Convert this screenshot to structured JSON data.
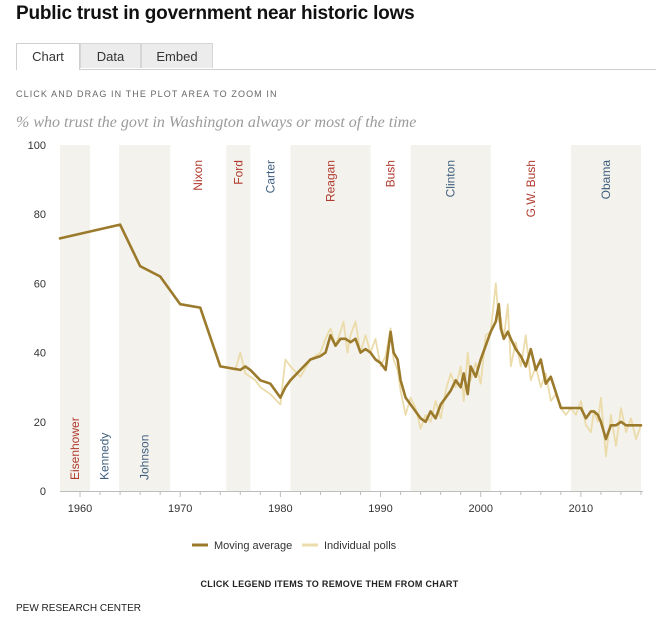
{
  "page": {
    "title": "Public trust in government near historic lows",
    "tabs": [
      {
        "label": "Chart",
        "active": true
      },
      {
        "label": "Data",
        "active": false
      },
      {
        "label": "Embed",
        "active": false
      }
    ],
    "zoom_hint": "CLICK AND DRAG IN THE PLOT AREA TO ZOOM IN",
    "legend_hint": "CLICK LEGEND ITEMS TO REMOVE THEM FROM CHART",
    "source": "PEW RESEARCH CENTER"
  },
  "chart_data": {
    "type": "line",
    "title": "% who trust the govt in Washington always or most of the time",
    "xlim": [
      1958,
      2016
    ],
    "ylim": [
      0,
      100
    ],
    "x_ticks": [
      1960,
      1970,
      1980,
      1990,
      2000,
      2010
    ],
    "y_ticks": [
      0,
      20,
      40,
      60,
      80,
      100
    ],
    "colors": {
      "moving_average": "#9b7a2c",
      "individual_polls": "#ecdcab",
      "shade": "#f3f2ec",
      "republican": "#b03a2e",
      "democrat": "#3f5f7f"
    },
    "presidents": [
      {
        "name": "Eisenhower",
        "start": 1958,
        "end": 1961,
        "party": "R",
        "shaded": true,
        "label_pos": "bottom"
      },
      {
        "name": "Kennedy",
        "start": 1961,
        "end": 1963.9,
        "party": "D",
        "shaded": false,
        "label_pos": "bottom"
      },
      {
        "name": "Johnson",
        "start": 1963.9,
        "end": 1969,
        "party": "D",
        "shaded": true,
        "label_pos": "bottom"
      },
      {
        "name": "Nixon",
        "start": 1969,
        "end": 1974.6,
        "party": "R",
        "shaded": false,
        "label_pos": "top"
      },
      {
        "name": "Ford",
        "start": 1974.6,
        "end": 1977,
        "party": "R",
        "shaded": true,
        "label_pos": "top"
      },
      {
        "name": "Carter",
        "start": 1977,
        "end": 1981,
        "party": "D",
        "shaded": false,
        "label_pos": "top"
      },
      {
        "name": "Reagan",
        "start": 1981,
        "end": 1989,
        "party": "R",
        "shaded": true,
        "label_pos": "top"
      },
      {
        "name": "Bush",
        "start": 1989,
        "end": 1993,
        "party": "R",
        "shaded": false,
        "label_pos": "top"
      },
      {
        "name": "Clinton",
        "start": 1993,
        "end": 2001,
        "party": "D",
        "shaded": true,
        "label_pos": "top"
      },
      {
        "name": "G.W. Bush",
        "start": 2001,
        "end": 2009,
        "party": "R",
        "shaded": false,
        "label_pos": "top"
      },
      {
        "name": "Obama",
        "start": 2009,
        "end": 2016,
        "party": "D",
        "shaded": true,
        "label_pos": "top"
      }
    ],
    "series": [
      {
        "name": "Individual polls",
        "x": [
          1958,
          1964,
          1966,
          1968,
          1970,
          1972,
          1974,
          1975.5,
          1976,
          1976.5,
          1977,
          1977.5,
          1978,
          1979,
          1980,
          1980.5,
          1981,
          1982,
          1983,
          1984,
          1984.5,
          1985,
          1985.5,
          1986,
          1986.3,
          1986.7,
          1987,
          1987.5,
          1988,
          1988.5,
          1989,
          1989.5,
          1990,
          1990.5,
          1991,
          1991.3,
          1991.7,
          1992,
          1992.5,
          1993,
          1993.5,
          1994,
          1994.5,
          1995,
          1995.5,
          1996,
          1996.5,
          1997,
          1997.5,
          1998,
          1998.3,
          1998.7,
          1999,
          1999.5,
          2000,
          2000.5,
          2001,
          2001.5,
          2001.8,
          2002,
          2002.3,
          2002.7,
          2003,
          2003.5,
          2004,
          2004.5,
          2005,
          2005.5,
          2006,
          2006.5,
          2007,
          2007.5,
          2008,
          2008.5,
          2009,
          2009.5,
          2010,
          2010.5,
          2011,
          2011.3,
          2011.7,
          2012,
          2012.5,
          2013,
          2013.5,
          2014,
          2014.5,
          2015,
          2015.5,
          2016
        ],
        "values": [
          73,
          77,
          65,
          62,
          54,
          53,
          36,
          35,
          40,
          34,
          33,
          32,
          30,
          28,
          25,
          38,
          36,
          33,
          38,
          40,
          44,
          47,
          42,
          46,
          49,
          40,
          45,
          49,
          40,
          45,
          40,
          44,
          36,
          39,
          47,
          38,
          35,
          29,
          22,
          27,
          24,
          18,
          22,
          20,
          26,
          21,
          29,
          34,
          30,
          36,
          26,
          40,
          32,
          37,
          31,
          45,
          46,
          60,
          49,
          50,
          44,
          54,
          36,
          43,
          36,
          45,
          32,
          36,
          30,
          34,
          26,
          28,
          24,
          22,
          24,
          22,
          26,
          19,
          17,
          23,
          20,
          27,
          10,
          22,
          13,
          24,
          17,
          21,
          15,
          19
        ],
        "color": "#ecdcab"
      },
      {
        "name": "Moving average",
        "x": [
          1958,
          1964,
          1966,
          1968,
          1970,
          1972,
          1974,
          1976,
          1976.5,
          1977,
          1978,
          1979,
          1980,
          1980.5,
          1981,
          1982,
          1983,
          1984,
          1984.5,
          1985,
          1985.5,
          1986,
          1986.5,
          1987,
          1987.5,
          1988,
          1988.5,
          1989,
          1989.5,
          1990,
          1990.5,
          1991,
          1991.3,
          1991.7,
          1992,
          1992.5,
          1993,
          1993.5,
          1994,
          1994.5,
          1995,
          1995.5,
          1996,
          1996.5,
          1997,
          1997.5,
          1998,
          1998.3,
          1998.7,
          1999,
          1999.5,
          2000,
          2000.5,
          2001,
          2001.5,
          2001.8,
          2002,
          2002.3,
          2002.7,
          2003,
          2003.5,
          2004,
          2004.5,
          2005,
          2005.5,
          2006,
          2006.5,
          2007,
          2008,
          2008.5,
          2009,
          2009.5,
          2010,
          2010.5,
          2011,
          2011.3,
          2011.7,
          2012,
          2012.5,
          2013,
          2013.5,
          2014,
          2014.5,
          2015,
          2015.5,
          2016
        ],
        "values": [
          73,
          77,
          65,
          62,
          54,
          53,
          36,
          35,
          36,
          35,
          32,
          31,
          27,
          30,
          32,
          35,
          38,
          39,
          40,
          45,
          42,
          44,
          44,
          43,
          44,
          40,
          41,
          40,
          38,
          37,
          35,
          46,
          40,
          38,
          32,
          27,
          25,
          23,
          21,
          20,
          23,
          21,
          25,
          27,
          29,
          32,
          30,
          34,
          28,
          36,
          33,
          38,
          42,
          46,
          49,
          54,
          47,
          44,
          46,
          44,
          41,
          39,
          36,
          41,
          35,
          38,
          31,
          33,
          24,
          24,
          24,
          24,
          24,
          21,
          23,
          23,
          22,
          20,
          15,
          19,
          19,
          20,
          19,
          19,
          19,
          19
        ],
        "color": "#9b7a2c"
      }
    ],
    "legend": [
      {
        "label": "Moving average",
        "style": "line",
        "color": "#9b7a2c"
      },
      {
        "label": "Individual polls",
        "style": "line",
        "color": "#ecdcab"
      }
    ]
  }
}
